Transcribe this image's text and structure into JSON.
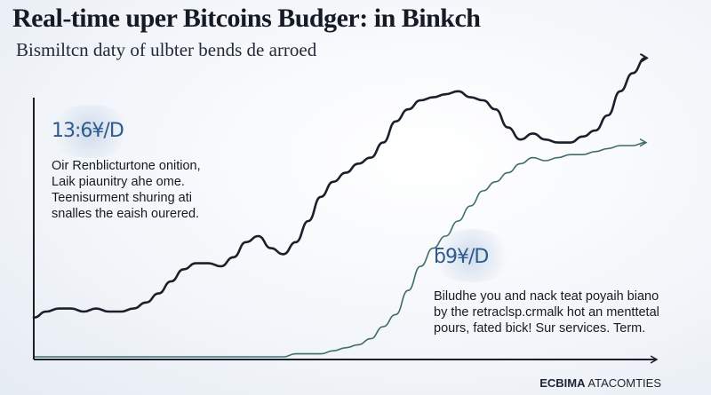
{
  "title": "Real-time uper Bitcoins Budger: in Binkch",
  "subtitle": "Bismiltcn daty of ulbter bends de arroed",
  "callouts": [
    {
      "value": "13:6¥/D",
      "lines": [
        "Oir Renblicturtone onition,",
        "Laik piaunitry ahe ome.",
        "Teenisurment shuring ati",
        "snalles the eaish ourered."
      ]
    },
    {
      "value": "ƃ9¥/D",
      "lines": [
        "Biludhe you and nack teat poyaih biano",
        "by the retraclsp.crmalk hot an menttetal",
        "pours, fated bick! Sur services. Term."
      ]
    }
  ],
  "brand": {
    "bold": "ECBIMA",
    "rest": " ATACOMTIES"
  },
  "colors": {
    "upper_line": "#1a1f2b",
    "lower_line": "#3d6b6a",
    "axis": "#1a1f2b",
    "accent": "#2e5a8c"
  },
  "chart_data": {
    "type": "line",
    "title": "Real-time uper Bitcoins Budger: in Binkch",
    "xlabel": "",
    "ylabel": "",
    "axis_ticks": false,
    "grid": false,
    "xlim": [
      0,
      100
    ],
    "ylim": [
      0,
      100
    ],
    "series": [
      {
        "x": [
          0,
          2,
          4,
          6,
          8,
          10,
          12,
          14,
          16,
          18,
          20,
          22,
          24,
          26,
          28,
          30,
          32,
          34,
          36,
          38,
          40,
          42,
          44,
          46,
          48,
          50,
          52,
          54,
          56,
          58,
          60,
          62,
          64,
          66,
          68,
          70,
          72,
          74,
          76,
          78,
          80,
          82,
          84,
          86,
          88,
          90,
          92,
          94,
          96,
          98
        ],
        "values": [
          13,
          15,
          16,
          16,
          15,
          16,
          15,
          15,
          16,
          18,
          21,
          25,
          29,
          31,
          31,
          30,
          33,
          38,
          40,
          36,
          34,
          38,
          45,
          53,
          58,
          61,
          64,
          66,
          71,
          78,
          82,
          85,
          86,
          87,
          88,
          86,
          85,
          82,
          76,
          72,
          74,
          72,
          71,
          71,
          73,
          75,
          80,
          88,
          94,
          99
        ],
        "arrow_end": true
      },
      {
        "x": [
          0,
          2,
          4,
          6,
          8,
          10,
          12,
          14,
          16,
          18,
          20,
          22,
          24,
          26,
          28,
          30,
          32,
          34,
          36,
          38,
          40,
          42,
          44,
          46,
          48,
          50,
          52,
          54,
          56,
          58,
          60,
          62,
          64,
          66,
          68,
          70,
          72,
          74,
          76,
          78,
          80,
          82,
          84,
          86,
          88,
          90,
          92,
          94,
          96,
          98
        ],
        "values": [
          0,
          0,
          0,
          0,
          0,
          0,
          0,
          0,
          0,
          0,
          0,
          0,
          0,
          0,
          0,
          0,
          0,
          0,
          0,
          0,
          0,
          1,
          1,
          1,
          2,
          3,
          4,
          6,
          10,
          14,
          22,
          30,
          36,
          40,
          45,
          50,
          55,
          58,
          61,
          64,
          66,
          65,
          66,
          67,
          67,
          68,
          69,
          70,
          70,
          71
        ],
        "arrow_end": true
      }
    ]
  }
}
